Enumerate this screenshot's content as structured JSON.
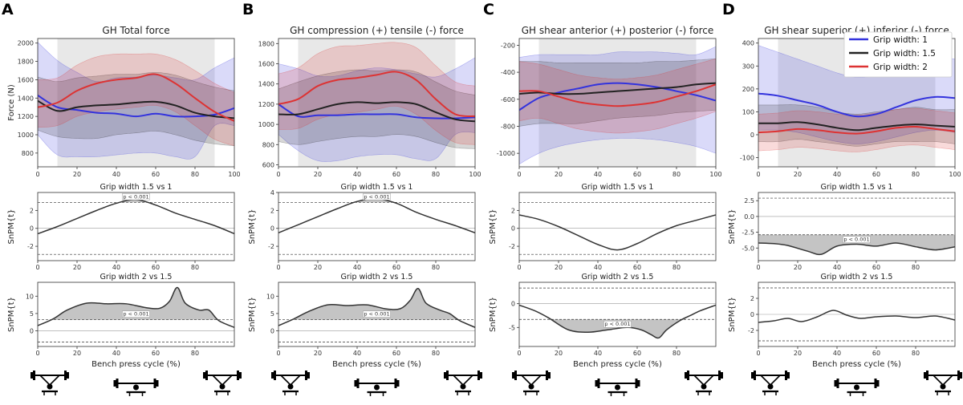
{
  "figure": {
    "x_axis_label": "Bench press cycle (%)",
    "x_ticks_top": [
      0,
      20,
      40,
      60,
      80,
      100
    ],
    "x_ticks_spm": [
      0,
      20,
      40,
      60,
      80
    ],
    "spm_ylabel": "SnPM{t}",
    "legend": [
      {
        "label": "Grip width: 1",
        "color": "#3333dd"
      },
      {
        "label": "Grip width: 1.5",
        "color": "#222222"
      },
      {
        "label": "Grip width: 2",
        "color": "#dd3333"
      }
    ],
    "comparisons": [
      "Grip width 1.5 vs 1",
      "Grip width 2 vs 1.5"
    ],
    "p_label": "p < 0.001"
  },
  "chart_data": [
    {
      "type": "line",
      "panel": "A",
      "title": "GH Total force",
      "ylabel": "Force (N)",
      "xlim": [
        0,
        100
      ],
      "ylim": [
        650,
        2050
      ],
      "yticks": [
        800,
        1000,
        1200,
        1400,
        1600,
        1800,
        2000
      ],
      "shaded_region": [
        10,
        90
      ],
      "x": [
        0,
        10,
        20,
        30,
        40,
        50,
        60,
        70,
        80,
        90,
        100
      ],
      "series": [
        {
          "name": "Grip width: 1",
          "values": [
            1430,
            1300,
            1270,
            1240,
            1230,
            1200,
            1230,
            1200,
            1200,
            1220,
            1290
          ],
          "lower": [
            1000,
            780,
            760,
            760,
            780,
            800,
            800,
            760,
            760,
            1100,
            1100
          ],
          "upper": [
            2010,
            1810,
            1680,
            1580,
            1620,
            1630,
            1650,
            1620,
            1600,
            1730,
            1840
          ]
        },
        {
          "name": "Grip width: 1.5",
          "values": [
            1370,
            1260,
            1300,
            1320,
            1330,
            1350,
            1360,
            1320,
            1240,
            1200,
            1180
          ],
          "lower": [
            1050,
            980,
            960,
            960,
            1000,
            1020,
            1040,
            1000,
            940,
            900,
            880
          ],
          "upper": [
            1630,
            1580,
            1620,
            1640,
            1660,
            1660,
            1680,
            1650,
            1580,
            1520,
            1480
          ]
        },
        {
          "name": "Grip width: 2",
          "values": [
            1300,
            1350,
            1480,
            1560,
            1600,
            1620,
            1660,
            1560,
            1400,
            1250,
            1150
          ],
          "lower": [
            1080,
            1100,
            1200,
            1250,
            1280,
            1300,
            1320,
            1250,
            1100,
            950,
            880
          ],
          "upper": [
            1600,
            1620,
            1760,
            1850,
            1880,
            1880,
            1880,
            1820,
            1700,
            1560,
            1460
          ]
        }
      ],
      "spm": [
        {
          "comparison": "Grip width 1.5 vs 1",
          "ylim": [
            -3.6,
            4
          ],
          "yticks": [
            -2,
            0,
            2
          ],
          "threshold": 2.9,
          "x": [
            0,
            10,
            20,
            30,
            40,
            50,
            60,
            70,
            80,
            90,
            100
          ],
          "values": [
            -0.6,
            0.2,
            1.1,
            2.0,
            2.8,
            3.2,
            2.6,
            1.7,
            1.0,
            0.3,
            -0.6
          ],
          "p_label": "p < 0.001",
          "p_label_x": 50
        },
        {
          "comparison": "Grip width 2 vs 1.5",
          "ylim": [
            -4.5,
            14
          ],
          "yticks": [
            0,
            5,
            10
          ],
          "threshold": 3.2,
          "x": [
            0,
            8,
            15,
            25,
            35,
            45,
            55,
            62,
            67,
            71,
            75,
            82,
            87,
            92,
            100
          ],
          "values": [
            1.5,
            3.5,
            6,
            8,
            7.8,
            7.8,
            6.7,
            6.5,
            8.5,
            12.5,
            8,
            6,
            6,
            3,
            1
          ],
          "p_label": "p < 0.001",
          "p_label_x": 50
        }
      ]
    },
    {
      "type": "line",
      "panel": "B",
      "title": "GH compression (+) tensile (-) force",
      "ylabel": "",
      "xlim": [
        0,
        100
      ],
      "ylim": [
        580,
        1850
      ],
      "yticks": [
        600,
        800,
        1000,
        1200,
        1400,
        1600,
        1800
      ],
      "shaded_region": [
        10,
        90
      ],
      "x": [
        0,
        10,
        20,
        30,
        40,
        50,
        60,
        70,
        80,
        90,
        100
      ],
      "series": [
        {
          "name": "Grip width: 1",
          "values": [
            1200,
            1080,
            1090,
            1090,
            1100,
            1100,
            1100,
            1070,
            1060,
            1060,
            1070
          ],
          "lower": [
            900,
            740,
            640,
            640,
            680,
            700,
            700,
            660,
            660,
            900,
            920
          ],
          "upper": [
            1600,
            1550,
            1480,
            1480,
            1530,
            1560,
            1540,
            1500,
            1470,
            1550,
            1660
          ]
        },
        {
          "name": "Grip width: 1.5",
          "values": [
            1100,
            1100,
            1150,
            1200,
            1220,
            1210,
            1220,
            1200,
            1120,
            1050,
            1030
          ],
          "lower": [
            830,
            800,
            830,
            860,
            880,
            880,
            900,
            880,
            820,
            770,
            760
          ],
          "upper": [
            1350,
            1420,
            1480,
            1520,
            1540,
            1530,
            1540,
            1520,
            1420,
            1330,
            1290
          ]
        },
        {
          "name": "Grip width: 2",
          "values": [
            1200,
            1250,
            1380,
            1440,
            1460,
            1490,
            1520,
            1440,
            1250,
            1100,
            1080
          ],
          "lower": [
            950,
            960,
            1050,
            1100,
            1120,
            1150,
            1180,
            1100,
            940,
            820,
            800
          ],
          "upper": [
            1500,
            1560,
            1700,
            1770,
            1780,
            1800,
            1810,
            1760,
            1580,
            1420,
            1380
          ]
        }
      ],
      "spm": [
        {
          "comparison": "Grip width 1.5 vs 1",
          "ylim": [
            -3.6,
            4
          ],
          "yticks": [
            -2,
            0,
            2,
            4
          ],
          "threshold": 2.9,
          "x": [
            0,
            10,
            20,
            30,
            40,
            50,
            60,
            70,
            80,
            90,
            100
          ],
          "values": [
            -0.5,
            0.4,
            1.3,
            2.2,
            3.0,
            3.3,
            2.8,
            1.8,
            1.0,
            0.3,
            -0.5
          ],
          "p_label": "p < 0.001",
          "p_label_x": 50
        },
        {
          "comparison": "Grip width 2 vs 1.5",
          "ylim": [
            -4.5,
            14
          ],
          "yticks": [
            0,
            5,
            10
          ],
          "threshold": 3.2,
          "x": [
            0,
            8,
            15,
            25,
            35,
            45,
            55,
            62,
            67,
            71,
            75,
            82,
            87,
            92,
            100
          ],
          "values": [
            1.5,
            3.5,
            5.5,
            7.5,
            7.3,
            7.5,
            6.3,
            6.4,
            8.8,
            12.2,
            8,
            6,
            5,
            3,
            1
          ],
          "p_label": "p < 0.001",
          "p_label_x": 50
        }
      ]
    },
    {
      "type": "line",
      "panel": "C",
      "title": "GH shear anterior (+) posterior (-) force",
      "ylabel": "",
      "xlim": [
        0,
        100
      ],
      "ylim": [
        -1100,
        -150
      ],
      "yticks": [
        -1000,
        -800,
        -600,
        -400,
        -200
      ],
      "shaded_region": [
        10,
        90
      ],
      "x": [
        0,
        10,
        20,
        30,
        40,
        50,
        60,
        70,
        80,
        90,
        100
      ],
      "series": [
        {
          "name": "Grip width: 1",
          "values": [
            -680,
            -590,
            -550,
            -520,
            -490,
            -480,
            -490,
            -510,
            -540,
            -570,
            -610
          ],
          "lower": [
            -1080,
            -1000,
            -950,
            -920,
            -900,
            -890,
            -890,
            -900,
            -920,
            -950,
            -1000
          ],
          "upper": [
            -290,
            -270,
            -270,
            -270,
            -270,
            -250,
            -250,
            -250,
            -260,
            -270,
            -210
          ]
        },
        {
          "name": "Grip width: 1.5",
          "values": [
            -560,
            -550,
            -560,
            -560,
            -550,
            -540,
            -530,
            -520,
            -510,
            -490,
            -480
          ],
          "lower": [
            -800,
            -780,
            -780,
            -780,
            -760,
            -740,
            -730,
            -720,
            -700,
            -690,
            -680
          ],
          "upper": [
            -320,
            -320,
            -330,
            -330,
            -330,
            -330,
            -330,
            -320,
            -320,
            -310,
            -300
          ]
        },
        {
          "name": "Grip width: 2",
          "values": [
            -540,
            -540,
            -580,
            -620,
            -640,
            -650,
            -640,
            -620,
            -580,
            -540,
            -490
          ],
          "lower": [
            -760,
            -740,
            -780,
            -820,
            -840,
            -850,
            -840,
            -820,
            -780,
            -740,
            -690
          ],
          "upper": [
            -320,
            -340,
            -380,
            -420,
            -440,
            -450,
            -440,
            -420,
            -380,
            -340,
            -300
          ]
        }
      ],
      "spm": [
        {
          "comparison": "Grip width 1.5 vs 1",
          "ylim": [
            -3.6,
            4
          ],
          "yticks": [
            -2,
            0,
            2
          ],
          "threshold": 2.9,
          "x": [
            0,
            10,
            20,
            30,
            40,
            50,
            60,
            70,
            80,
            90,
            100
          ],
          "values": [
            1.5,
            1.0,
            0.2,
            -0.8,
            -1.8,
            -2.4,
            -1.7,
            -0.6,
            0.3,
            0.9,
            1.5
          ],
          "p_label": "",
          "p_label_x": 50
        },
        {
          "comparison": "Grip width 2 vs 1.5",
          "ylim": [
            -9,
            4.5
          ],
          "yticks": [
            -5,
            0
          ],
          "threshold": -3.3,
          "x": [
            0,
            8,
            15,
            25,
            35,
            45,
            55,
            62,
            67,
            71,
            75,
            82,
            87,
            92,
            100
          ],
          "values": [
            -0.3,
            -1.5,
            -3,
            -5.5,
            -6,
            -5.5,
            -5,
            -5.5,
            -6.5,
            -7.2,
            -5.5,
            -3.5,
            -2.5,
            -1.5,
            -0.3
          ],
          "p_label": "p < 0.001",
          "p_label_x": 50
        }
      ]
    },
    {
      "type": "line",
      "panel": "D",
      "title": "GH shear superior (+) inferior (-) force",
      "ylabel": "",
      "xlim": [
        0,
        100
      ],
      "ylim": [
        -140,
        420
      ],
      "yticks": [
        -100,
        0,
        100,
        200,
        300,
        400
      ],
      "shaded_region": [
        10,
        90
      ],
      "x": [
        0,
        10,
        20,
        30,
        40,
        50,
        60,
        70,
        80,
        90,
        100
      ],
      "series": [
        {
          "name": "Grip width: 1",
          "values": [
            180,
            170,
            150,
            130,
            100,
            80,
            90,
            120,
            150,
            165,
            160
          ],
          "lower": [
            20,
            20,
            10,
            -10,
            -30,
            -40,
            -30,
            -10,
            10,
            20,
            10
          ],
          "upper": [
            390,
            360,
            330,
            300,
            270,
            250,
            260,
            290,
            320,
            340,
            330
          ]
        },
        {
          "name": "Grip width: 1.5",
          "values": [
            50,
            50,
            55,
            45,
            30,
            20,
            30,
            40,
            45,
            40,
            35
          ],
          "lower": [
            -30,
            -30,
            -20,
            -30,
            -40,
            -50,
            -40,
            -30,
            -30,
            -30,
            -40
          ],
          "upper": [
            130,
            130,
            130,
            120,
            100,
            90,
            100,
            110,
            120,
            110,
            110
          ]
        },
        {
          "name": "Grip width: 2",
          "values": [
            10,
            15,
            25,
            20,
            10,
            5,
            15,
            30,
            35,
            25,
            15
          ],
          "lower": [
            -70,
            -65,
            -55,
            -60,
            -70,
            -75,
            -65,
            -50,
            -45,
            -55,
            -65
          ],
          "upper": [
            90,
            95,
            105,
            100,
            90,
            85,
            95,
            110,
            115,
            105,
            95
          ]
        }
      ],
      "spm": [
        {
          "comparison": "Grip width 1.5 vs 1",
          "ylim": [
            -7,
            3.8
          ],
          "yticks": [
            -5.0,
            -2.5,
            0.0,
            2.5
          ],
          "threshold": -2.9,
          "x": [
            0,
            8,
            15,
            25,
            32,
            40,
            50,
            60,
            70,
            80,
            90,
            100
          ],
          "values": [
            -4.2,
            -4.3,
            -4.6,
            -5.5,
            -6.0,
            -4.7,
            -4.4,
            -4.7,
            -4.2,
            -4.8,
            -5.3,
            -4.8
          ],
          "p_label": "p < 0.001",
          "p_label_x": 50
        },
        {
          "comparison": "Grip width 2 vs 1.5",
          "ylim": [
            -4,
            4
          ],
          "yticks": [
            -2,
            0,
            2
          ],
          "threshold": 3.3,
          "x": [
            0,
            8,
            15,
            22,
            30,
            38,
            45,
            52,
            60,
            70,
            80,
            90,
            100
          ],
          "values": [
            -1.0,
            -0.8,
            -0.5,
            -0.9,
            -0.3,
            0.5,
            -0.1,
            -0.5,
            -0.3,
            -0.2,
            -0.4,
            -0.2,
            -0.7
          ],
          "p_label": "",
          "p_label_x": 50
        }
      ]
    }
  ]
}
